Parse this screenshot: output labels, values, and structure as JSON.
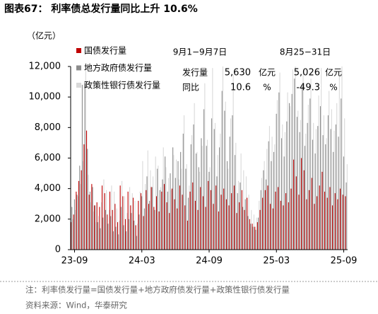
{
  "chart_data": {
    "type": "bar",
    "title": "图表67：  利率债总发行量同比上升 10.6%",
    "y_unit": "（亿元）",
    "categories": [
      null,
      "23-09",
      null,
      null,
      null,
      null,
      null,
      null,
      null,
      null,
      null,
      null,
      null,
      null,
      null,
      null,
      null,
      null,
      null,
      null,
      null,
      null,
      null,
      null,
      null,
      null,
      null,
      "24-03",
      null,
      null,
      null,
      null,
      null,
      null,
      null,
      null,
      null,
      null,
      null,
      null,
      null,
      null,
      null,
      null,
      null,
      null,
      null,
      null,
      null,
      null,
      null,
      null,
      null,
      "24-09",
      null,
      null,
      null,
      null,
      null,
      null,
      null,
      null,
      null,
      null,
      null,
      null,
      null,
      null,
      null,
      null,
      null,
      null,
      null,
      null,
      null,
      null,
      null,
      null,
      null,
      "25-03",
      null,
      null,
      null,
      null,
      null,
      null,
      null,
      null,
      null,
      null,
      null,
      null,
      null,
      null,
      null,
      null,
      null,
      null,
      null,
      null,
      null,
      null,
      null,
      null,
      null,
      "25-09",
      null
    ],
    "series": [
      {
        "name": "国债发行量",
        "color": "#c00000",
        "values": [
          1800,
          2300,
          3800,
          4500,
          5200,
          6900,
          7800,
          3600,
          4300,
          2900,
          3100,
          2800,
          4200,
          3700,
          2300,
          3800,
          2600,
          3000,
          1800,
          4200,
          3500,
          2000,
          3800,
          2900,
          3400,
          1600,
          3200,
          3700,
          2200,
          3900,
          3000,
          4100,
          2800,
          3500,
          2500,
          3800,
          4300,
          3100,
          2400,
          4000,
          3300,
          2700,
          4200,
          3600,
          2900,
          1900,
          3800,
          4400,
          3200,
          2600,
          4100,
          3500,
          2800,
          4500,
          3900,
          3000,
          4200,
          2500,
          3600,
          4000,
          3300,
          2900,
          3700,
          4200,
          2400,
          3100,
          3900,
          2600,
          3400,
          2000,
          1700,
          1500,
          1800,
          2600,
          3400,
          3900,
          4200,
          3000,
          2700,
          3800,
          4100,
          3200,
          2900,
          3700,
          3100,
          4000,
          5900,
          4800,
          3600,
          6000,
          5200,
          3300,
          3900,
          4700,
          3000,
          3500,
          4200,
          5100,
          3800,
          3400,
          4100,
          2900,
          3700,
          3300,
          4000,
          3600,
          3500
        ]
      },
      {
        "name": "地方政府债发行量",
        "color": "#8c8c8c",
        "values": [
          2800,
          3300,
          3600,
          5500,
          10800,
          11000,
          6600,
          3800,
          4100,
          2900,
          1800,
          1400,
          2100,
          2600,
          1700,
          2200,
          1200,
          1500,
          1000,
          2800,
          1600,
          1200,
          2000,
          2400,
          1900,
          900,
          2300,
          3500,
          2700,
          4800,
          3200,
          4100,
          2600,
          5300,
          3900,
          4600,
          6100,
          3800,
          5000,
          6700,
          4700,
          5800,
          6400,
          7600,
          5300,
          3400,
          6900,
          8200,
          6300,
          5400,
          7300,
          9200,
          6800,
          5100,
          8600,
          7900,
          4800,
          6700,
          10400,
          9100,
          5800,
          7400,
          8800,
          6200,
          3700,
          4400,
          2800,
          3300,
          2200,
          1700,
          1500,
          1300,
          2100,
          3900,
          5200,
          4600,
          7100,
          5800,
          6400,
          8900,
          10300,
          7300,
          6100,
          8400,
          9600,
          10200,
          11200,
          8700,
          7700,
          10800,
          6800,
          8300,
          9900,
          7200,
          6300,
          8100,
          9400,
          7500,
          6900,
          8800,
          7900,
          6400,
          8200,
          7400,
          9900,
          6100,
          4400
        ]
      },
      {
        "name": "政策性银行债发行量",
        "color": "#d9d9d9",
        "values": [
          2000,
          2600,
          3500,
          4300,
          5800,
          12000,
          4900,
          3100,
          2500,
          1800,
          2200,
          3100,
          4600,
          3900,
          2600,
          4200,
          3800,
          2700,
          1900,
          4500,
          3500,
          2400,
          4100,
          3700,
          3200,
          1700,
          3800,
          5800,
          4300,
          6500,
          5200,
          4800,
          6100,
          5500,
          4100,
          6700,
          5400,
          4700,
          3900,
          6200,
          5900,
          4600,
          5300,
          8800,
          5600,
          4200,
          7500,
          9600,
          6400,
          5100,
          6800,
          10900,
          7200,
          5400,
          11900,
          8300,
          6200,
          7600,
          12000,
          9700,
          5300,
          8600,
          11500,
          7000,
          4500,
          6300,
          5200,
          4800,
          3600,
          2600,
          2300,
          2100,
          3200,
          4700,
          5800,
          6600,
          8100,
          7400,
          6900,
          9800,
          11600,
          8200,
          7700,
          10300,
          9400,
          11800,
          12000,
          9100,
          8500,
          11700,
          7600,
          9500,
          11200,
          8300,
          7900,
          10100,
          11900,
          8800,
          7300,
          10400,
          9200,
          7800,
          9600,
          11400,
          12000,
          8600,
          5600
        ]
      }
    ],
    "ylim": [
      0,
      12000
    ],
    "yticks": [
      0,
      {
        "value": 2000,
        "label": "2,000"
      },
      {
        "value": 4000,
        "label": "4,000"
      },
      {
        "value": 6000,
        "label": "6,000"
      },
      {
        "value": 8000,
        "label": "8,000"
      },
      {
        "value": 10000,
        "label": "10,000"
      },
      {
        "value": 12000,
        "label": "12,000"
      }
    ],
    "legend": "upper left",
    "annotation": {
      "periods": [
        "9月1−9月7日",
        "8月25−31日"
      ],
      "rows": [
        {
          "label": "发行量",
          "values": [
            "5,630",
            "5,026"
          ],
          "units": [
            "亿元",
            "亿元"
          ]
        },
        {
          "label": "同比",
          "values": [
            "10.6",
            "-49.3"
          ],
          "units": [
            "%",
            "%"
          ]
        }
      ]
    },
    "note": "注：利率债发行量=国债发行量+地方政府债发行量+政策性银行债发行量",
    "source": "资料来源：Wind，华泰研究"
  }
}
